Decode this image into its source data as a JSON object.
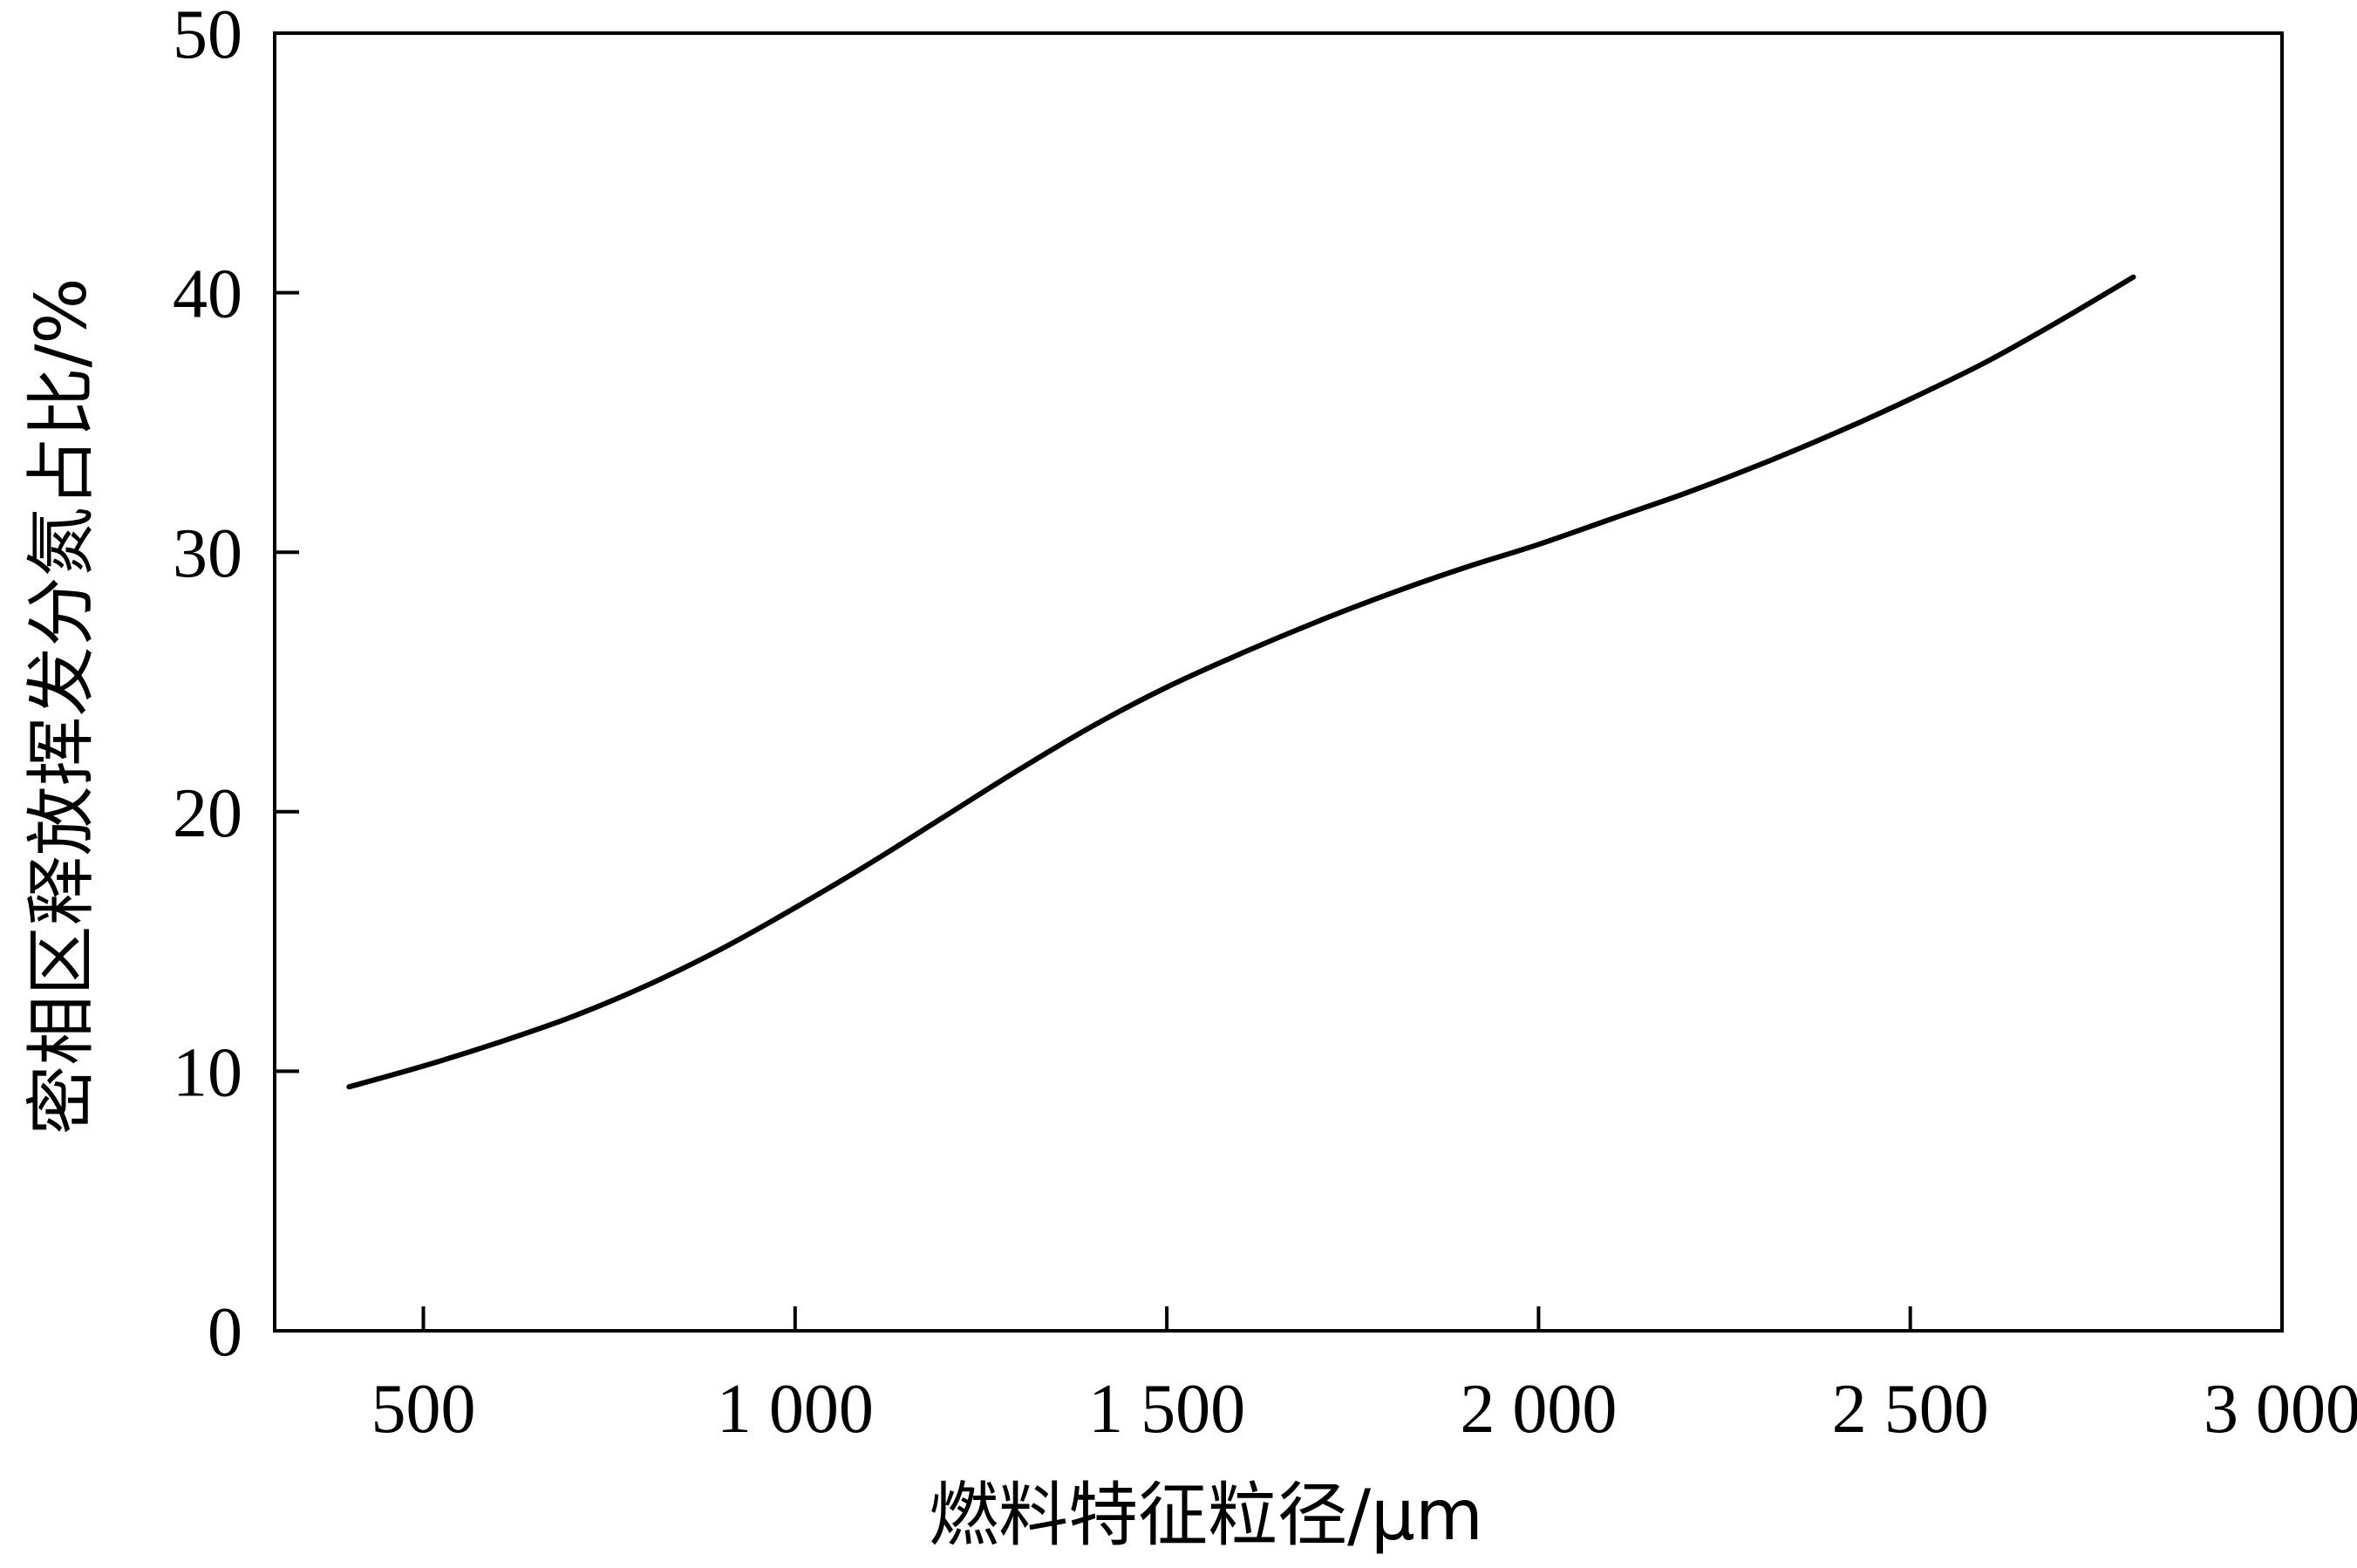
{
  "chart_data": {
    "type": "line",
    "title": "",
    "xlabel": "燃料特征粒径/μm",
    "ylabel": "密相区释放挥发分氮占比/%",
    "xlim": [
      300,
      3000
    ],
    "ylim": [
      0,
      50
    ],
    "xticks": [
      500,
      1000,
      1500,
      2000,
      2500,
      3000
    ],
    "xtick_labels": [
      "500",
      "1 000",
      "1 500",
      "2 000",
      "2 500",
      "3 000"
    ],
    "yticks": [
      0,
      10,
      20,
      30,
      40,
      50
    ],
    "ytick_labels": [
      "0",
      "10",
      "20",
      "30",
      "40",
      "50"
    ],
    "grid": false,
    "legend": "none",
    "line_color": "#000000",
    "series": [
      {
        "x": [
          400,
          500,
          600,
          700,
          800,
          900,
          1000,
          1100,
          1200,
          1300,
          1400,
          1500,
          1600,
          1700,
          1800,
          1900,
          2000,
          2100,
          2200,
          2300,
          2400,
          2500,
          2600,
          2700,
          2800
        ],
        "y": [
          9.4,
          10.2,
          11.1,
          12.1,
          13.3,
          14.7,
          16.3,
          18.0,
          19.8,
          21.6,
          23.3,
          24.8,
          26.1,
          27.3,
          28.4,
          29.4,
          30.3,
          31.3,
          32.3,
          33.4,
          34.6,
          35.9,
          37.3,
          38.9,
          40.6
        ]
      }
    ]
  }
}
